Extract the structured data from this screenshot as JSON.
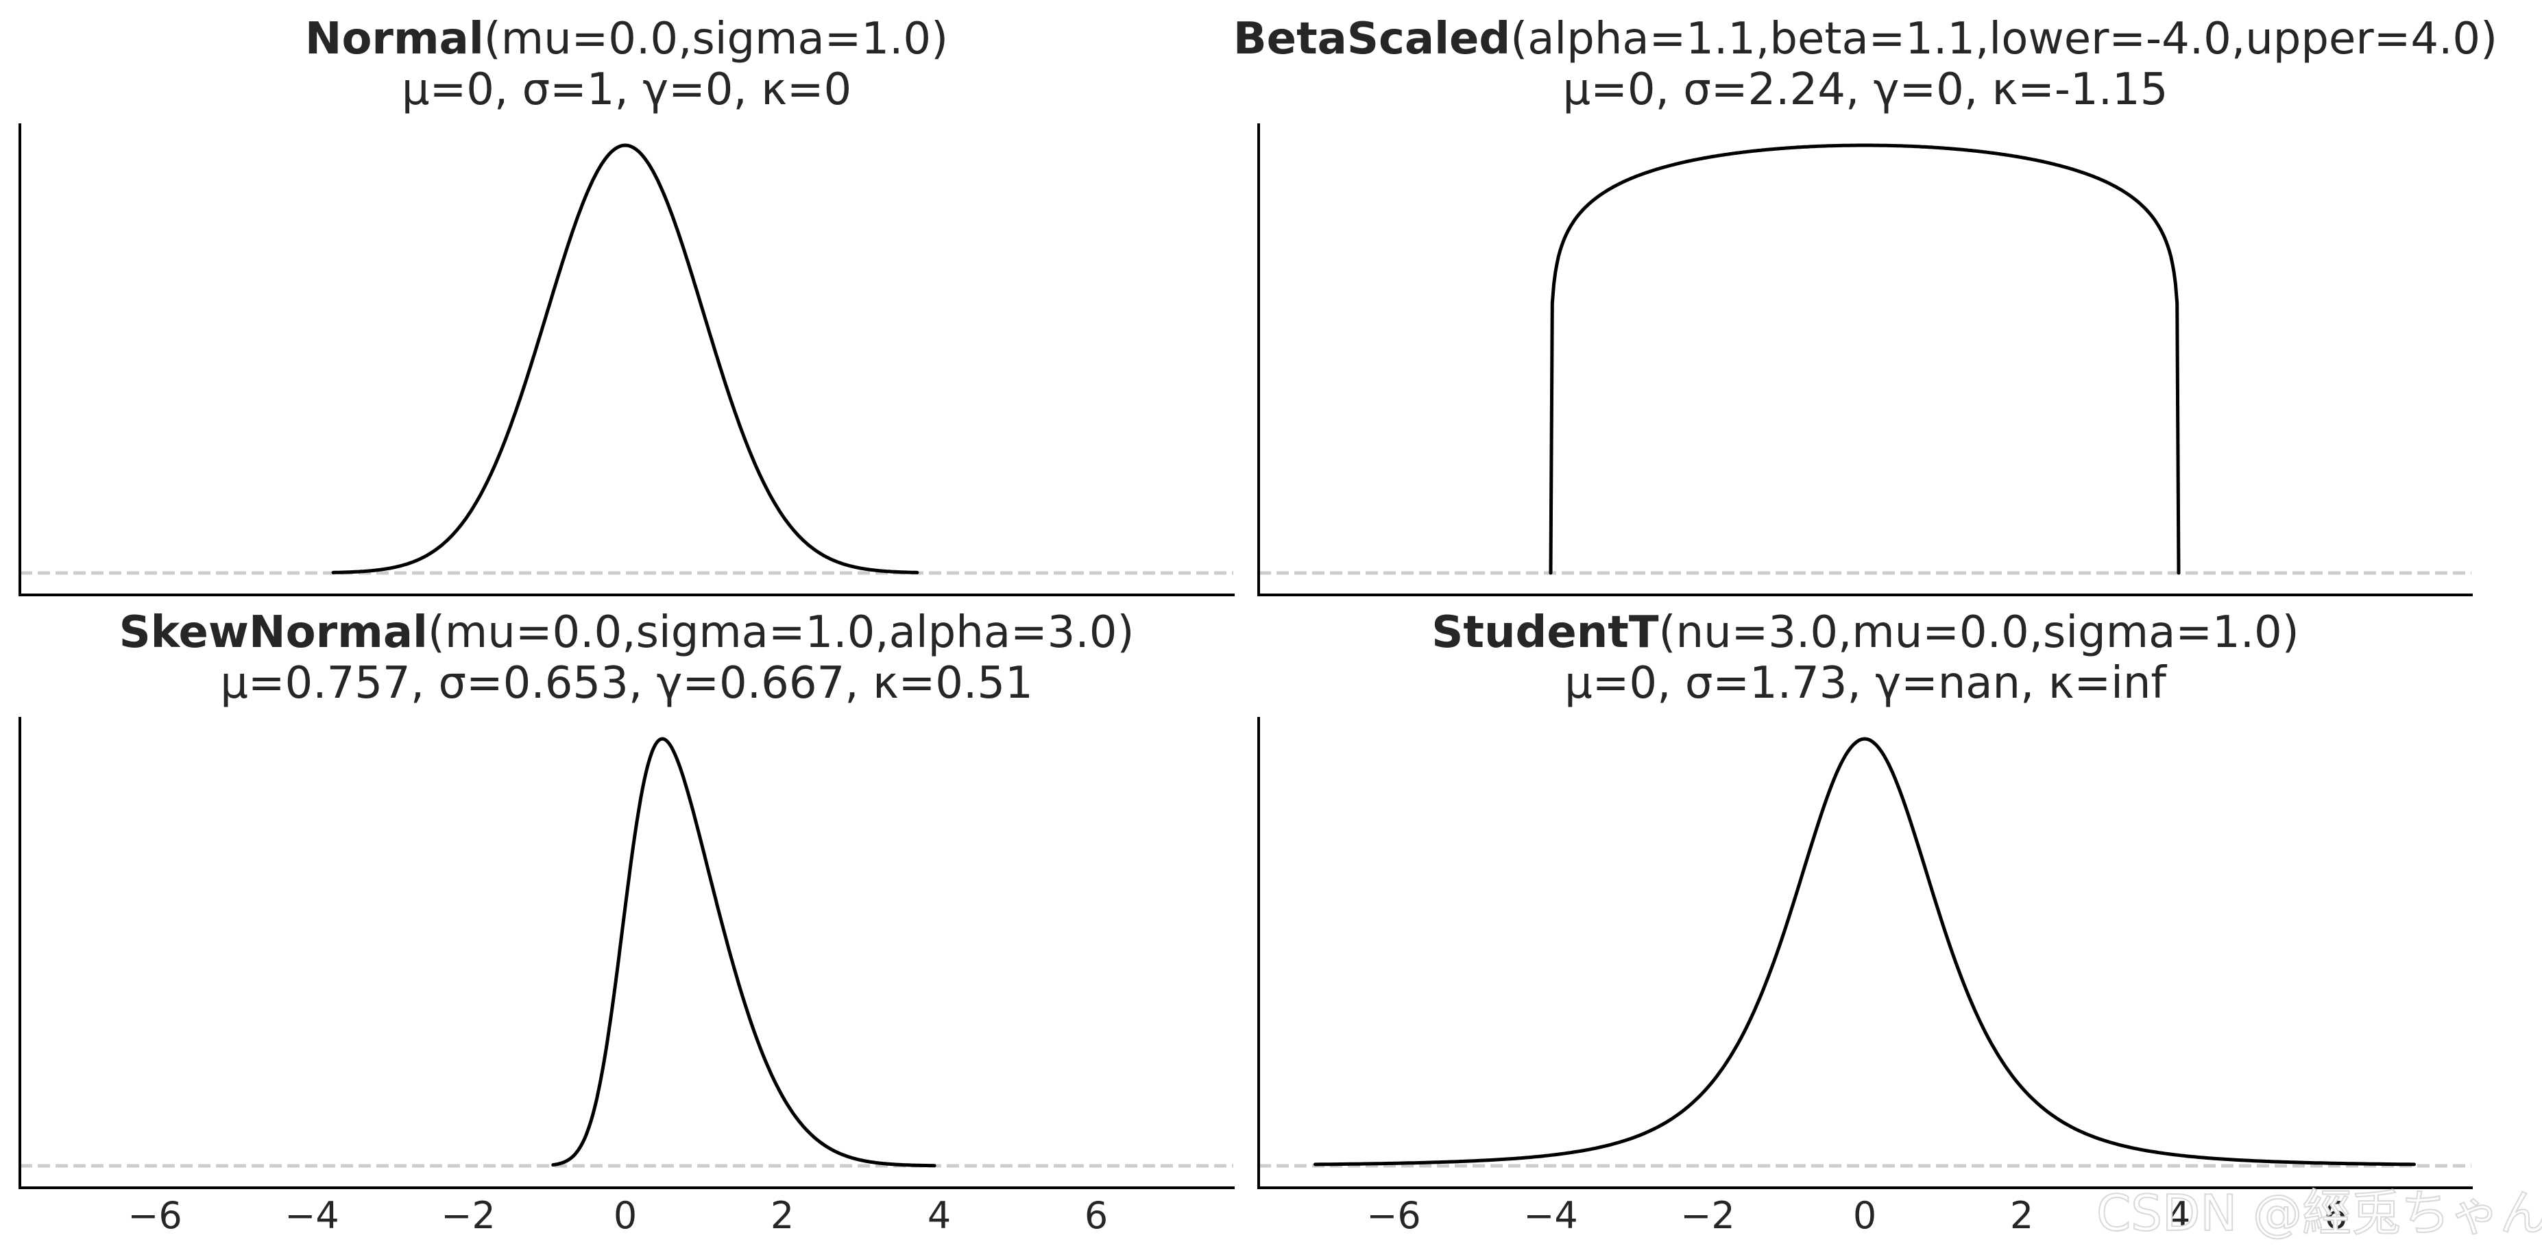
{
  "chart_data": [
    {
      "type": "line",
      "panel": "top-left",
      "title_bold": "Normal",
      "title_params": "(mu=0.0,sigma=1.0)",
      "subtitle": "μ=0, σ=1, γ=0, κ=0",
      "distribution": "Normal",
      "params": {
        "mu": 0.0,
        "sigma": 1.0
      },
      "moments": {
        "mean": "0",
        "std": "1",
        "skew": "0",
        "kurtosis": "0"
      },
      "x_range_plotted": [
        -3.72,
        3.72
      ],
      "xlim": [
        -7.7,
        7.8
      ],
      "xticks": [
        -6,
        -4,
        -2,
        0,
        2,
        4,
        6
      ],
      "xtick_labels_visible": false,
      "yticks": [],
      "xlabel": "",
      "ylabel": "",
      "grid": false,
      "reference_line": {
        "y": 0,
        "style": "dashed",
        "color": "#cccccc"
      }
    },
    {
      "type": "line",
      "panel": "top-right",
      "title_bold": "BetaScaled",
      "title_params": "(alpha=1.1,beta=1.1,lower=-4.0,upper=4.0)",
      "subtitle": "μ=0, σ=2.24, γ=0, κ=-1.15",
      "distribution": "BetaScaled",
      "params": {
        "alpha": 1.1,
        "beta": 1.1,
        "lower": -4.0,
        "upper": 4.0
      },
      "moments": {
        "mean": "0",
        "std": "2.24",
        "skew": "0",
        "kurtosis": "-1.15"
      },
      "x_range_plotted": [
        -4.0,
        4.0
      ],
      "xlim": [
        -7.7,
        7.8
      ],
      "xticks": [
        -6,
        -4,
        -2,
        0,
        2,
        4,
        6
      ],
      "xtick_labels_visible": false,
      "yticks": [],
      "xlabel": "",
      "ylabel": "",
      "grid": false,
      "reference_line": {
        "y": 0,
        "style": "dashed",
        "color": "#cccccc"
      }
    },
    {
      "type": "line",
      "panel": "bottom-left",
      "title_bold": "SkewNormal",
      "title_params": "(mu=0.0,sigma=1.0,alpha=3.0)",
      "subtitle": "μ=0.757, σ=0.653, γ=0.667, κ=0.51",
      "distribution": "SkewNormal",
      "params": {
        "mu": 0.0,
        "sigma": 1.0,
        "alpha": 3.0
      },
      "moments": {
        "mean": "0.757",
        "std": "0.653",
        "skew": "0.667",
        "kurtosis": "0.51"
      },
      "x_range_plotted": [
        -0.92,
        3.94
      ],
      "xlim": [
        -7.7,
        7.8
      ],
      "xticks": [
        -6,
        -4,
        -2,
        0,
        2,
        4,
        6
      ],
      "xtick_labels_visible": true,
      "yticks": [],
      "xlabel": "",
      "ylabel": "",
      "grid": false,
      "reference_line": {
        "y": 0,
        "style": "dashed",
        "color": "#cccccc"
      }
    },
    {
      "type": "line",
      "panel": "bottom-right",
      "title_bold": "StudentT",
      "title_params": "(nu=3.0,mu=0.0,sigma=1.0)",
      "subtitle": "μ=0, σ=1.73, γ=nan, κ=inf",
      "distribution": "StudentT",
      "params": {
        "nu": 3.0,
        "mu": 0.0,
        "sigma": 1.0
      },
      "moments": {
        "mean": "0",
        "std": "1.73",
        "skew": "nan",
        "kurtosis": "inf"
      },
      "x_range_plotted": [
        -7.0,
        7.0
      ],
      "xlim": [
        -7.7,
        7.8
      ],
      "xticks": [
        -6,
        -4,
        -2,
        0,
        2,
        4,
        6
      ],
      "xtick_labels_visible": true,
      "yticks": [],
      "xlabel": "",
      "ylabel": "",
      "grid": false,
      "reference_line": {
        "y": 0,
        "style": "dashed",
        "color": "#cccccc"
      }
    }
  ],
  "panels": {
    "normal": {
      "title_bold": "Normal",
      "title_params": "(mu=0.0,sigma=1.0)",
      "subtitle": "μ=0, σ=1, γ=0, κ=0"
    },
    "beta_scaled": {
      "title_bold": "BetaScaled",
      "title_params": "(alpha=1.1,beta=1.1,lower=-4.0,upper=4.0)",
      "subtitle": "μ=0, σ=2.24, γ=0, κ=-1.15"
    },
    "skew_normal": {
      "title_bold": "SkewNormal",
      "title_params": "(mu=0.0,sigma=1.0,alpha=3.0)",
      "subtitle": "μ=0.757, σ=0.653, γ=0.667, κ=0.51"
    },
    "student_t": {
      "title_bold": "StudentT",
      "title_params": "(nu=3.0,mu=0.0,sigma=1.0)",
      "subtitle": "μ=0, σ=1.73, γ=nan, κ=inf"
    }
  },
  "x_tick_labels": [
    "−6",
    "−4",
    "−2",
    "0",
    "2",
    "4",
    "6"
  ],
  "colors": {
    "curve": "#000000",
    "axis": "#000000",
    "reference_line": "#cccccc",
    "text": "#262626"
  },
  "watermark": "CSDN @經兎ちゃん"
}
